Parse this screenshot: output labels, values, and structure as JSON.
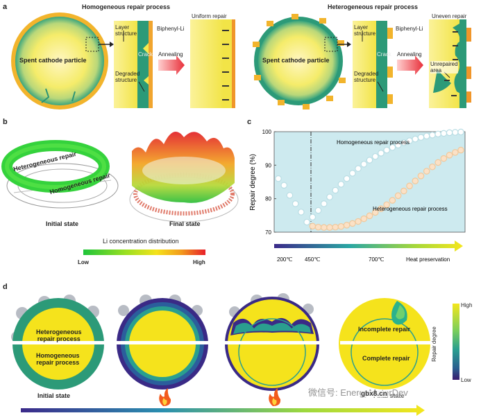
{
  "panel_labels": {
    "a": "a",
    "b": "b",
    "c": "c",
    "d": "d"
  },
  "panel_a": {
    "homogeneous_title": "Homogeneous repair process",
    "heterogeneous_title": "Heterogeneous repair process",
    "particle_label": "Spent cathode particle",
    "layer_structure": "Layer\nstructure",
    "biphenyl_li": "Biphenyl-Li",
    "crack": "Crack",
    "annealing": "Annealing",
    "degraded_structure": "Degraded\nstructure",
    "uniform_repair": "Uniform repair",
    "uneven_repair": "Uneven repair",
    "unrepaired_area": "Unrepaired\narea"
  },
  "panel_b": {
    "heterogeneous_repair": "Heterogeneous repair",
    "homogeneous_repair": "Homogeneous repair",
    "initial_state": "Initial state",
    "final_state": "Final state",
    "colorbar_title": "Li concentration distribution",
    "colorbar_low": "Low",
    "colorbar_high": "High"
  },
  "chart_data": {
    "type": "scatter",
    "ylabel": "Repair degree (%)",
    "ylim": [
      70,
      100
    ],
    "yticks": [
      "100",
      "90",
      "80",
      "70"
    ],
    "xlabel": "",
    "vline_label": "450℃",
    "arrow_labels": [
      "200℃",
      "450℃",
      "700℃",
      "Heat preservation"
    ],
    "series": [
      {
        "name": "Homogeneous repair process",
        "color": "#ffffff",
        "x": [
          0,
          1,
          2,
          3,
          4,
          5,
          6,
          7,
          8,
          9,
          10,
          11,
          12,
          13,
          14,
          15,
          16,
          17,
          18,
          19,
          20,
          21,
          22,
          23,
          24,
          25,
          26,
          27,
          28,
          29,
          30,
          31,
          32
        ],
        "values": [
          86,
          84,
          81,
          78.5,
          76,
          73,
          74.5,
          76.5,
          78.5,
          80.5,
          82.5,
          84.3,
          86,
          87.6,
          89,
          90.3,
          91.5,
          92.6,
          93.6,
          94.5,
          95.3,
          96,
          96.7,
          97.3,
          97.8,
          98.3,
          98.7,
          99,
          99.3,
          99.5,
          99.7,
          99.8,
          99.9
        ]
      },
      {
        "name": "Heterogeneous repair process",
        "color": "#fbe1c6",
        "x": [
          6,
          7,
          8,
          9,
          10,
          11,
          12,
          13,
          14,
          15,
          16,
          17,
          18,
          19,
          20,
          21,
          22,
          23,
          24,
          25,
          26,
          27,
          28,
          29,
          30,
          31,
          32
        ],
        "values": [
          71.8,
          71.5,
          71.4,
          71.4,
          71.5,
          71.7,
          72.1,
          72.6,
          73.2,
          74,
          74.9,
          75.9,
          77,
          78.2,
          79.5,
          80.9,
          82.3,
          83.8,
          85.3,
          86.8,
          88.2,
          89.5,
          90.8,
          92,
          93,
          93.8,
          94.5
        ]
      }
    ]
  },
  "panel_d": {
    "heterogeneous_repair_process": "Heterogeneous\nrepair process",
    "homogeneous_repair_process": "Homogeneous\nrepair process",
    "initial_state": "Initial state",
    "incomplete_repair": "Incomplete repair",
    "complete_repair": "Complete repair",
    "final_state": "Final state",
    "colorbar_high": "High",
    "colorbar_low": "Low",
    "colorbar_title": "Repair degree",
    "flame_icon": "flame-icon"
  },
  "watermark": "微信号: EnergyMaterDev",
  "watermark_logo": "gbx8.cn"
}
